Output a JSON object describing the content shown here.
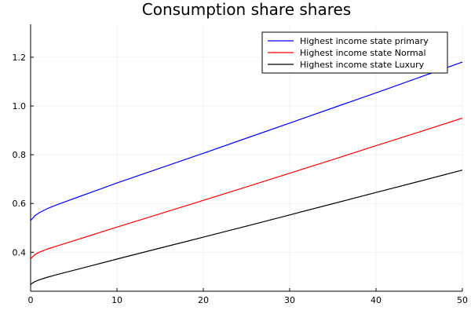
{
  "chart_data": {
    "type": "line",
    "title": "Consumption share shares",
    "xlabel": "",
    "ylabel": "",
    "xlim": [
      0,
      50
    ],
    "ylim": [
      0.24,
      1.335
    ],
    "xticks": [
      0,
      10,
      20,
      30,
      40,
      50
    ],
    "yticks": [
      0.4,
      0.6,
      0.8,
      1.0,
      1.2
    ],
    "xtick_labels": [
      "0",
      "10",
      "20",
      "30",
      "40",
      "50"
    ],
    "ytick_labels": [
      "0.4",
      "0.6",
      "0.8",
      "1.0",
      "1.2"
    ],
    "grid": true,
    "legend_position": "top-right",
    "series": [
      {
        "name": "Highest income state primary",
        "color": "#0000ff",
        "x": [
          0,
          0.5,
          1,
          2,
          3,
          5,
          7.5,
          10,
          15,
          20,
          25,
          30,
          35,
          40,
          45,
          50
        ],
        "y": [
          0.53,
          0.55,
          0.562,
          0.58,
          0.594,
          0.62,
          0.652,
          0.684,
          0.745,
          0.806,
          0.868,
          0.93,
          0.992,
          1.054,
          1.117,
          1.18
        ]
      },
      {
        "name": "Highest income state Normal",
        "color": "#ff0000",
        "x": [
          0,
          0.5,
          1,
          2,
          3,
          5,
          7.5,
          10,
          15,
          20,
          25,
          30,
          35,
          40,
          45,
          50
        ],
        "y": [
          0.373,
          0.39,
          0.4,
          0.414,
          0.425,
          0.447,
          0.475,
          0.503,
          0.558,
          0.613,
          0.668,
          0.724,
          0.78,
          0.837,
          0.893,
          0.95
        ]
      },
      {
        "name": "Highest income state Luxury",
        "color": "#000000",
        "x": [
          0,
          0.5,
          1,
          2,
          3,
          5,
          7.5,
          10,
          15,
          20,
          25,
          30,
          35,
          40,
          45,
          50
        ],
        "y": [
          0.268,
          0.28,
          0.287,
          0.298,
          0.308,
          0.326,
          0.349,
          0.372,
          0.417,
          0.462,
          0.507,
          0.553,
          0.599,
          0.645,
          0.691,
          0.737
        ]
      }
    ]
  }
}
